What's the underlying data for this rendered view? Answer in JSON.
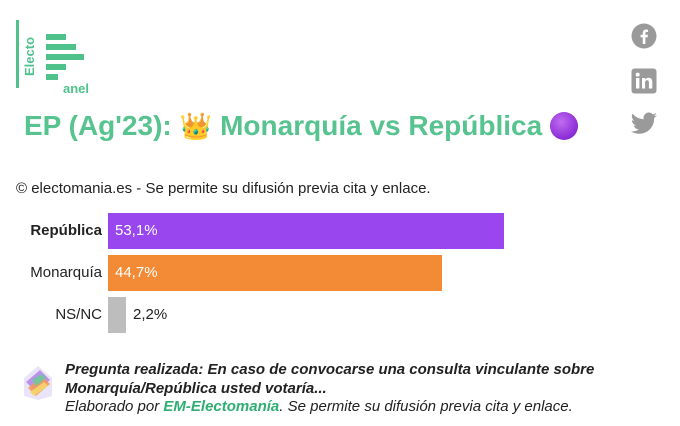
{
  "logo": {
    "electo": "Electo",
    "anel": "anel",
    "brand_color": "#4fc28c"
  },
  "social": {
    "icons": [
      "facebook-icon",
      "linkedin-icon",
      "twitter-icon"
    ]
  },
  "title": {
    "main": "EP (Ag'23):",
    "crown": "👑",
    "rest": "Monarquía vs República"
  },
  "copyright": "© electomania.es - Se permite su difusión previa cita y enlace.",
  "chart_data": {
    "type": "bar",
    "orientation": "horizontal",
    "categories": [
      "República",
      "Monarquía",
      "NS/NC"
    ],
    "values": [
      53.1,
      44.7,
      2.2
    ],
    "value_labels": [
      "53,1%",
      "44,7%",
      "2,2%"
    ],
    "colors": [
      "#9a46ee",
      "#f28a36",
      "#bdbdbd"
    ],
    "xlim": [
      0,
      60
    ]
  },
  "footer": {
    "question": "Pregunta realizada: En caso de convocarse una consulta vinculante sobre Monarquía/República usted votaría...",
    "credit_prefix": "Elaborado por",
    "credit_brand": "EM-Electomanía",
    "credit_suffix": ". Se permite su difusión previa cita y enlace."
  }
}
